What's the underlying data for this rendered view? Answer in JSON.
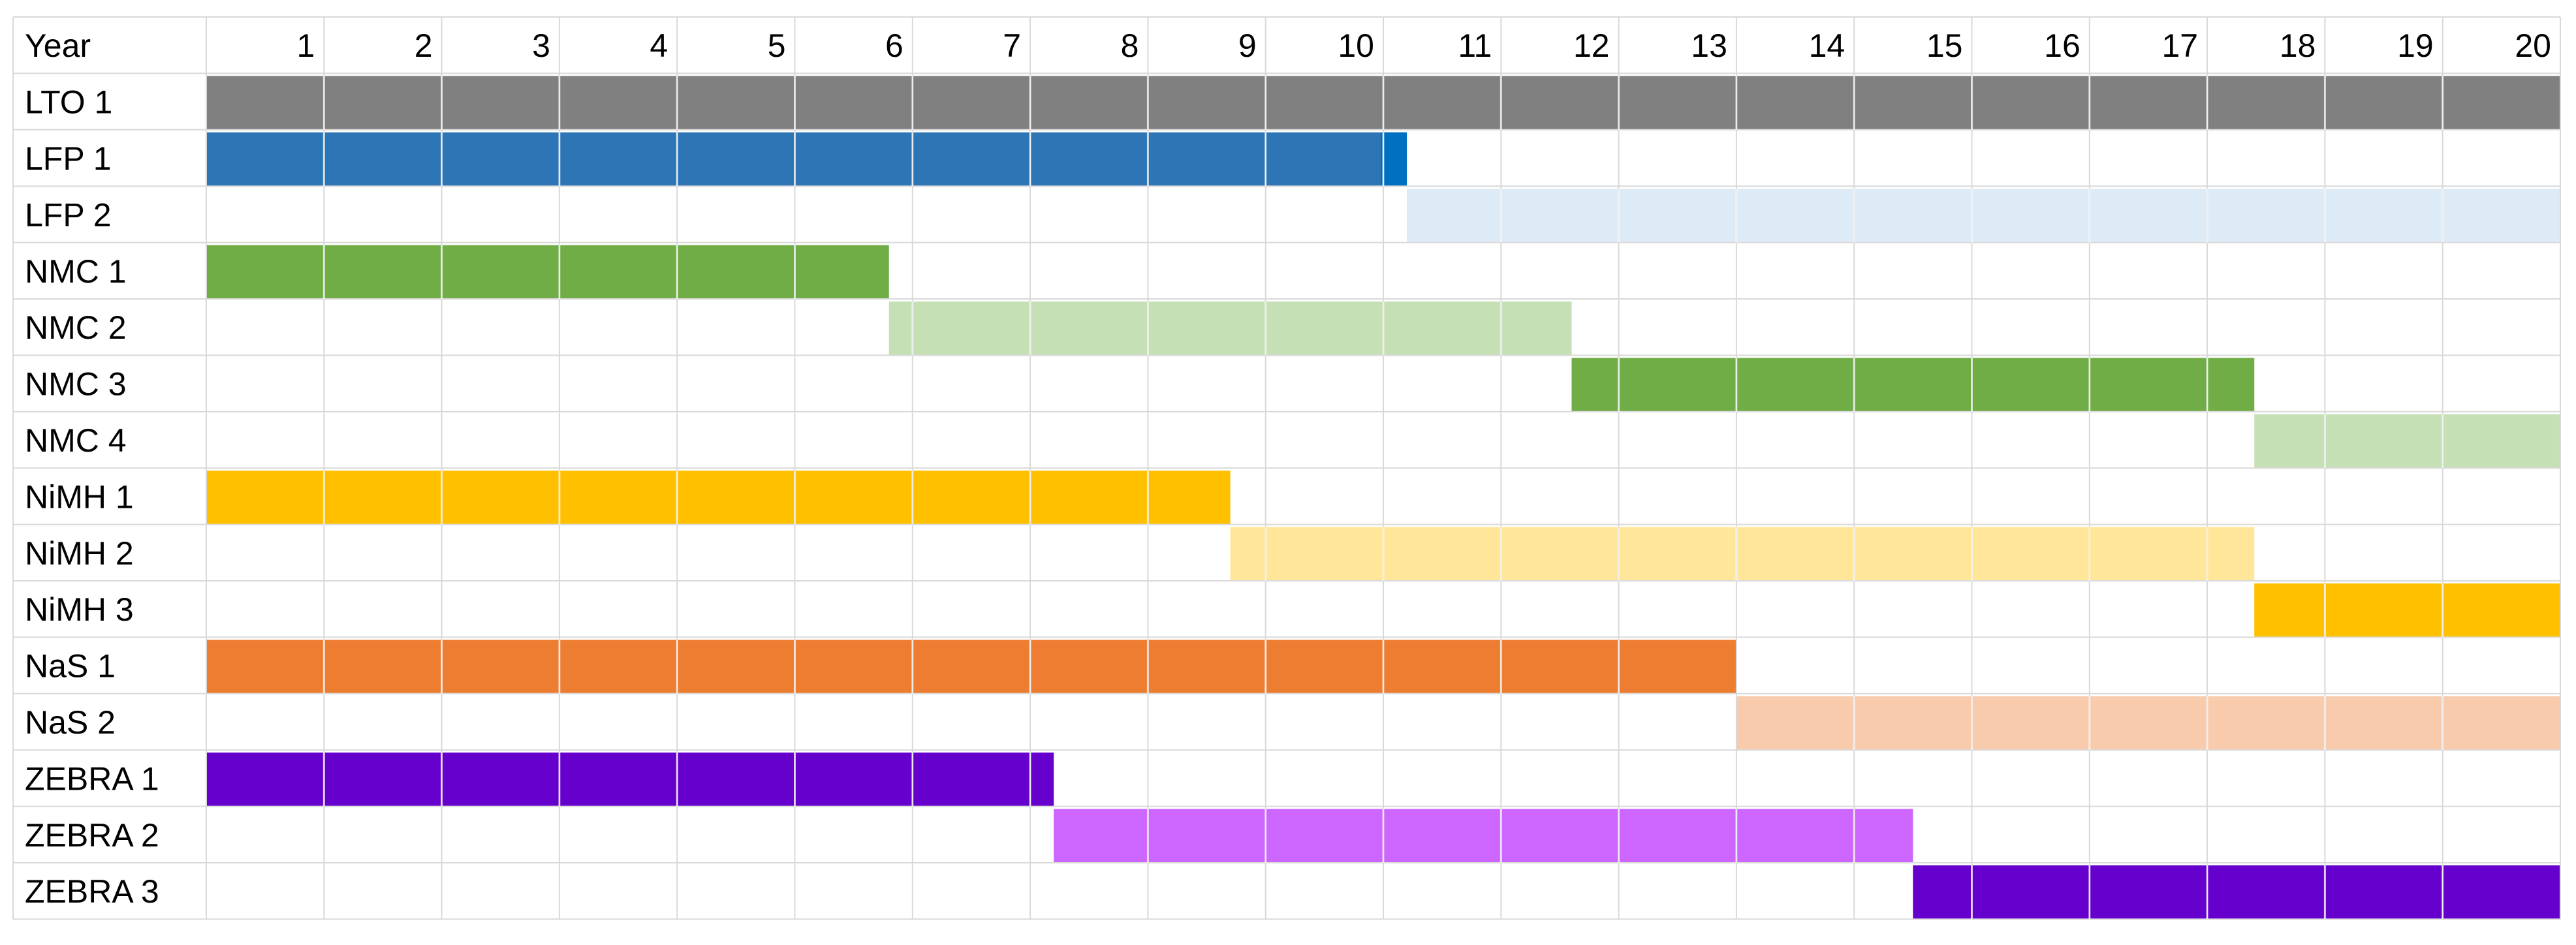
{
  "chart_data": {
    "type": "bar",
    "subtype": "gantt-timeline",
    "header_label": "Year",
    "x": [
      1,
      2,
      3,
      4,
      5,
      6,
      7,
      8,
      9,
      10,
      11,
      12,
      13,
      14,
      15,
      16,
      17,
      18,
      19,
      20
    ],
    "xlim": [
      0,
      20
    ],
    "grid": true,
    "rows": [
      {
        "label": "LTO 1",
        "start": 0,
        "end": 20,
        "color": "#808080"
      },
      {
        "label": "LFP 1",
        "start": 0,
        "end": 10.2,
        "color": "#2e75b6",
        "end_color": "#0070c0"
      },
      {
        "label": "LFP 2",
        "start": 10.2,
        "end": 20,
        "color": "#ddebf7"
      },
      {
        "label": "NMC 1",
        "start": 0,
        "end": 5.8,
        "color": "#70ad47"
      },
      {
        "label": "NMC 2",
        "start": 5.8,
        "end": 11.6,
        "color": "#c5e0b4"
      },
      {
        "label": "NMC 3",
        "start": 11.6,
        "end": 17.4,
        "color": "#70ad47"
      },
      {
        "label": "NMC 4",
        "start": 17.4,
        "end": 20,
        "color": "#c5e0b4"
      },
      {
        "label": "NiMH 1",
        "start": 0,
        "end": 8.7,
        "color": "#ffc000"
      },
      {
        "label": "NiMH 2",
        "start": 8.7,
        "end": 17.4,
        "color": "#ffe699"
      },
      {
        "label": "NiMH 3",
        "start": 17.4,
        "end": 20,
        "color": "#ffc000"
      },
      {
        "label": "NaS 1",
        "start": 0,
        "end": 13,
        "color": "#ed7d31"
      },
      {
        "label": "NaS 2",
        "start": 13,
        "end": 20,
        "color": "#f8cbad"
      },
      {
        "label": "ZEBRA 1",
        "start": 0,
        "end": 7.2,
        "color": "#6600cc"
      },
      {
        "label": "ZEBRA 2",
        "start": 7.2,
        "end": 14.5,
        "color": "#cc66ff"
      },
      {
        "label": "ZEBRA 3",
        "start": 14.5,
        "end": 20,
        "color": "#6600cc"
      }
    ]
  }
}
